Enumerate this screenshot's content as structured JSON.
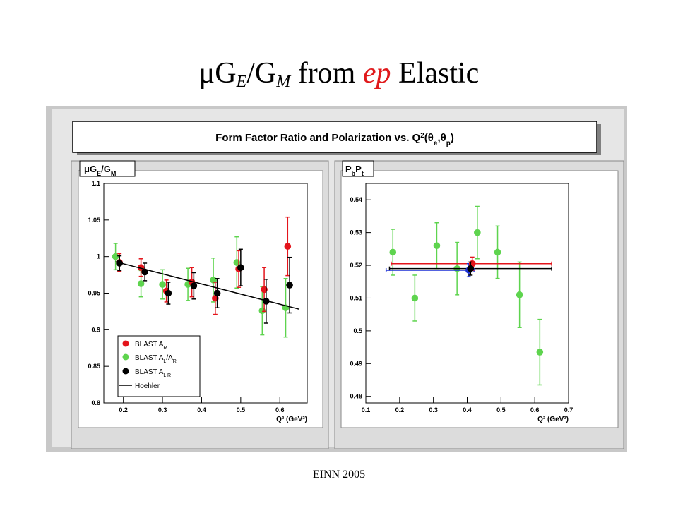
{
  "slide": {
    "title_prefix": "μG",
    "title_sub_e": "E",
    "title_mid": "/G",
    "title_sub_m": "M",
    "title_from": " from ",
    "title_ep": "ep",
    "title_end": " Elastic",
    "footer": "EINN 2005"
  },
  "figure": {
    "banner": "Form Factor Ratio and Polarization vs. Q²(θe,θp)",
    "colors": {
      "red": "#e4141b",
      "green": "#5ed44e",
      "black": "#000000",
      "blue": "#1b2fd6",
      "panel": "#dcdcdc",
      "frame": "#c8c8c8"
    }
  },
  "chart_data": [
    {
      "type": "scatter",
      "ylabel": "μGE/GM",
      "xlabel": "Q² (GeV²)",
      "xlim": [
        0.15,
        0.67
      ],
      "ylim": [
        0.8,
        1.1
      ],
      "xticks": [
        "0.2",
        "0.3",
        "0.4",
        "0.5",
        "0.6"
      ],
      "yticks": [
        "0.8",
        "0.85",
        "0.9",
        "0.95",
        "1",
        "1.05",
        "1.1"
      ],
      "legend": [
        "BLAST A_R",
        "BLAST A_L/A_R",
        "BLAST A_LR",
        "Hoehler"
      ],
      "series": [
        {
          "name": "BLAST A_R",
          "color": "#e4141b",
          "points": [
            [
              0.19,
              0.992,
              0.012
            ],
            [
              0.245,
              0.985,
              0.012
            ],
            [
              0.31,
              0.953,
              0.015
            ],
            [
              0.375,
              0.965,
              0.02
            ],
            [
              0.435,
              0.943,
              0.022
            ],
            [
              0.495,
              0.983,
              0.025
            ],
            [
              0.56,
              0.955,
              0.03
            ],
            [
              0.62,
              1.014,
              0.04
            ]
          ]
        },
        {
          "name": "BLAST A_L/A_R",
          "color": "#5ed44e",
          "points": [
            [
              0.18,
              1.0,
              0.018
            ],
            [
              0.245,
              0.963,
              0.018
            ],
            [
              0.3,
              0.962,
              0.02
            ],
            [
              0.365,
              0.962,
              0.022
            ],
            [
              0.43,
              0.968,
              0.03
            ],
            [
              0.49,
              0.992,
              0.035
            ],
            [
              0.555,
              0.926,
              0.033
            ],
            [
              0.615,
              0.93,
              0.04
            ]
          ]
        },
        {
          "name": "BLAST A_LR",
          "color": "#000000",
          "points": [
            [
              0.19,
              0.991,
              0.01
            ],
            [
              0.255,
              0.979,
              0.012
            ],
            [
              0.315,
              0.95,
              0.015
            ],
            [
              0.38,
              0.96,
              0.018
            ],
            [
              0.44,
              0.95,
              0.02
            ],
            [
              0.5,
              0.985,
              0.025
            ],
            [
              0.565,
              0.939,
              0.03
            ],
            [
              0.625,
              0.961,
              0.038
            ]
          ]
        },
        {
          "name": "Hoehler",
          "type": "line",
          "color": "#000000",
          "x": [
            0.18,
            0.65
          ],
          "y": [
            0.993,
            0.928
          ]
        }
      ]
    },
    {
      "type": "scatter",
      "ylabel": "PbPt",
      "xlabel": "Q² (GeV²)",
      "xlim": [
        0.1,
        0.7
      ],
      "ylim": [
        0.478,
        0.545
      ],
      "xticks": [
        "0.1",
        "0.2",
        "0.3",
        "0.4",
        "0.5",
        "0.6",
        "0.7"
      ],
      "yticks": [
        "0.48",
        "0.49",
        "0.5",
        "0.51",
        "0.52",
        "0.53",
        "0.54"
      ],
      "series": [
        {
          "name": "green",
          "color": "#5ed44e",
          "points": [
            [
              0.18,
              0.524,
              0.007
            ],
            [
              0.245,
              0.51,
              0.007
            ],
            [
              0.31,
              0.526,
              0.007
            ],
            [
              0.37,
              0.519,
              0.008
            ],
            [
              0.43,
              0.53,
              0.008
            ],
            [
              0.49,
              0.524,
              0.008
            ],
            [
              0.555,
              0.511,
              0.01
            ],
            [
              0.615,
              0.4935,
              0.01
            ]
          ]
        },
        {
          "name": "black",
          "color": "#000000",
          "point": [
            0.41,
            0.519,
            0.002
          ],
          "xerr": [
            0.17,
            0.65
          ]
        },
        {
          "name": "red",
          "color": "#e4141b",
          "point": [
            0.415,
            0.5205,
            0.002
          ],
          "xerr": [
            0.175,
            0.65
          ]
        },
        {
          "name": "blue",
          "color": "#1b2fd6",
          "point": [
            0.405,
            0.5185,
            0.002
          ],
          "xerr": [
            0.16,
            0.42
          ]
        }
      ]
    }
  ]
}
